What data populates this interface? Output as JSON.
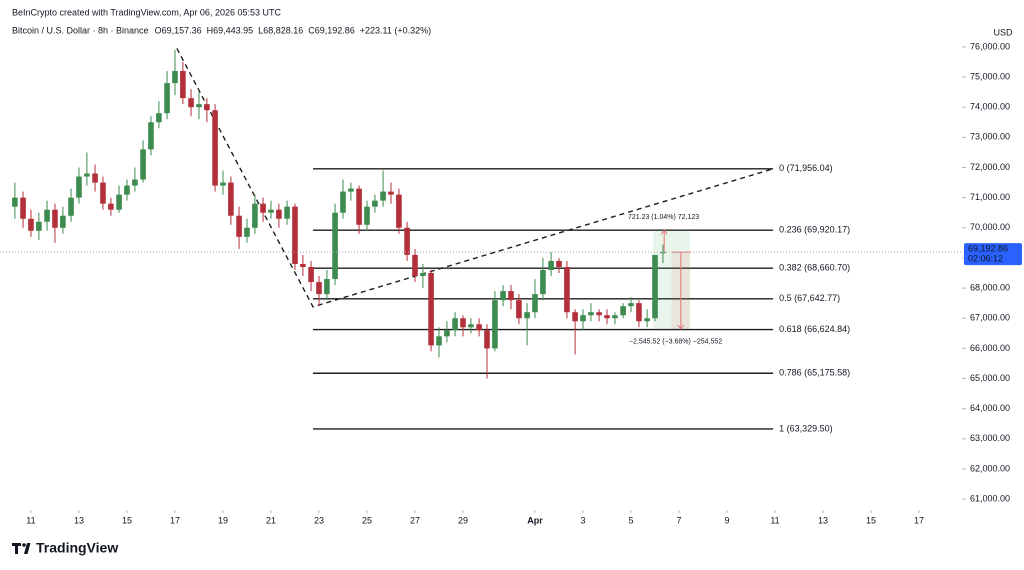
{
  "chart_data": {
    "type": "candlestick",
    "header": "BeInCrypto created with TradingView.com, Apr 06, 2026 05:53 UTC",
    "legend": {
      "symbol": "Bitcoin / U.S. Dollar · 8h · Binance",
      "fields": [
        {
          "key": "O",
          "text": "69,157.36"
        },
        {
          "key": "H",
          "text": "69,443.95"
        },
        {
          "key": "L",
          "text": "68,828.16"
        },
        {
          "key": "C",
          "text": "69,192.86"
        }
      ],
      "change": "+223.11 (+0.32%)"
    },
    "currency": "USD",
    "up_color": "#3d8b4f",
    "down_color": "#b3303a",
    "grid": false,
    "xlim": [
      -1.29,
      38.79
    ],
    "ylim": [
      60640,
      76560
    ],
    "xticks": [
      {
        "value": 0,
        "label": "11"
      },
      {
        "value": 2,
        "label": "13"
      },
      {
        "value": 4,
        "label": "15"
      },
      {
        "value": 6,
        "label": "17"
      },
      {
        "value": 8,
        "label": "19"
      },
      {
        "value": 10,
        "label": "21"
      },
      {
        "value": 12,
        "label": "23"
      },
      {
        "value": 14,
        "label": "25"
      },
      {
        "value": 16,
        "label": "27"
      },
      {
        "value": 18,
        "label": "29"
      },
      {
        "value": 21,
        "label": "Apr"
      },
      {
        "value": 23,
        "label": "3"
      },
      {
        "value": 25,
        "label": "5"
      },
      {
        "value": 27,
        "label": "7"
      },
      {
        "value": 29,
        "label": "9"
      },
      {
        "value": 31,
        "label": "11"
      },
      {
        "value": 33,
        "label": "13"
      },
      {
        "value": 35,
        "label": "15"
      },
      {
        "value": 37,
        "label": "17"
      }
    ],
    "yticks": [
      {
        "value": 76000,
        "label": "76,000.00"
      },
      {
        "value": 75000,
        "label": "75,000.00"
      },
      {
        "value": 74000,
        "label": "74,000.00"
      },
      {
        "value": 73000,
        "label": "73,000.00"
      },
      {
        "value": 72000,
        "label": "72,000.00"
      },
      {
        "value": 71000,
        "label": "71,000.00"
      },
      {
        "value": 70000,
        "label": "70,000.00"
      },
      {
        "value": 69000,
        "label": "69,000.00"
      },
      {
        "value": 68000,
        "label": "68,000.00"
      },
      {
        "value": 67000,
        "label": "67,000.00"
      },
      {
        "value": 66000,
        "label": "66,000.00"
      },
      {
        "value": 65000,
        "label": "65,000.00"
      },
      {
        "value": 64000,
        "label": "64,000.00"
      },
      {
        "value": 63000,
        "label": "63,000.00"
      },
      {
        "value": 62000,
        "label": "62,000.00"
      },
      {
        "value": 61000,
        "label": "61,000.00"
      }
    ],
    "candles": [
      {
        "x": -0.67,
        "o": 70700,
        "h": 71500,
        "l": 70300,
        "c": 71000
      },
      {
        "x": -0.33,
        "o": 71000,
        "h": 71200,
        "l": 70000,
        "c": 70300
      },
      {
        "x": 0,
        "o": 70300,
        "h": 70600,
        "l": 69700,
        "c": 69900
      },
      {
        "x": 0.33,
        "o": 69900,
        "h": 70500,
        "l": 69600,
        "c": 70200
      },
      {
        "x": 0.67,
        "o": 70200,
        "h": 70900,
        "l": 69900,
        "c": 70600
      },
      {
        "x": 1,
        "o": 70600,
        "h": 70800,
        "l": 69500,
        "c": 70000
      },
      {
        "x": 1.33,
        "o": 70000,
        "h": 70700,
        "l": 69800,
        "c": 70400
      },
      {
        "x": 1.67,
        "o": 70400,
        "h": 71300,
        "l": 70200,
        "c": 71000
      },
      {
        "x": 2,
        "o": 71000,
        "h": 72000,
        "l": 70800,
        "c": 71700
      },
      {
        "x": 2.33,
        "o": 71700,
        "h": 72500,
        "l": 71400,
        "c": 71800
      },
      {
        "x": 2.67,
        "o": 71800,
        "h": 72100,
        "l": 71200,
        "c": 71500
      },
      {
        "x": 3,
        "o": 71500,
        "h": 71700,
        "l": 70600,
        "c": 70800
      },
      {
        "x": 3.33,
        "o": 70800,
        "h": 71000,
        "l": 70400,
        "c": 70600
      },
      {
        "x": 3.67,
        "o": 70600,
        "h": 71400,
        "l": 70500,
        "c": 71100
      },
      {
        "x": 4,
        "o": 71100,
        "h": 71600,
        "l": 70900,
        "c": 71400
      },
      {
        "x": 4.33,
        "o": 71400,
        "h": 72000,
        "l": 71200,
        "c": 71600
      },
      {
        "x": 4.67,
        "o": 71600,
        "h": 72900,
        "l": 71500,
        "c": 72600
      },
      {
        "x": 5,
        "o": 72600,
        "h": 73700,
        "l": 72400,
        "c": 73500
      },
      {
        "x": 5.33,
        "o": 73500,
        "h": 74200,
        "l": 73300,
        "c": 73800
      },
      {
        "x": 5.67,
        "o": 73800,
        "h": 75200,
        "l": 73600,
        "c": 74800
      },
      {
        "x": 6,
        "o": 74800,
        "h": 75900,
        "l": 74400,
        "c": 75200
      },
      {
        "x": 6.33,
        "o": 75200,
        "h": 75500,
        "l": 74100,
        "c": 74300
      },
      {
        "x": 6.67,
        "o": 74300,
        "h": 74600,
        "l": 73700,
        "c": 74000
      },
      {
        "x": 7,
        "o": 74000,
        "h": 74500,
        "l": 73600,
        "c": 74100
      },
      {
        "x": 7.33,
        "o": 74100,
        "h": 74300,
        "l": 73500,
        "c": 73900
      },
      {
        "x": 7.67,
        "o": 73900,
        "h": 74100,
        "l": 71200,
        "c": 71400
      },
      {
        "x": 8,
        "o": 71400,
        "h": 71900,
        "l": 71100,
        "c": 71500
      },
      {
        "x": 8.33,
        "o": 71500,
        "h": 71700,
        "l": 70100,
        "c": 70400
      },
      {
        "x": 8.67,
        "o": 70400,
        "h": 70700,
        "l": 69300,
        "c": 69700
      },
      {
        "x": 9,
        "o": 69700,
        "h": 70300,
        "l": 69500,
        "c": 70000
      },
      {
        "x": 9.33,
        "o": 70000,
        "h": 71100,
        "l": 69800,
        "c": 70800
      },
      {
        "x": 9.67,
        "o": 70800,
        "h": 71000,
        "l": 70200,
        "c": 70500
      },
      {
        "x": 10,
        "o": 70500,
        "h": 70900,
        "l": 70300,
        "c": 70600
      },
      {
        "x": 10.33,
        "o": 70600,
        "h": 70800,
        "l": 70000,
        "c": 70300
      },
      {
        "x": 10.67,
        "o": 70300,
        "h": 70900,
        "l": 70100,
        "c": 70700
      },
      {
        "x": 11,
        "o": 70700,
        "h": 70800,
        "l": 68600,
        "c": 68800
      },
      {
        "x": 11.33,
        "o": 68800,
        "h": 69100,
        "l": 68400,
        "c": 68700
      },
      {
        "x": 11.67,
        "o": 68700,
        "h": 68900,
        "l": 67900,
        "c": 68200
      },
      {
        "x": 12,
        "o": 68200,
        "h": 68400,
        "l": 67400,
        "c": 67800
      },
      {
        "x": 12.33,
        "o": 67800,
        "h": 68600,
        "l": 67600,
        "c": 68300
      },
      {
        "x": 12.67,
        "o": 68300,
        "h": 70800,
        "l": 68100,
        "c": 70500
      },
      {
        "x": 13,
        "o": 70500,
        "h": 71600,
        "l": 70300,
        "c": 71200
      },
      {
        "x": 13.33,
        "o": 71200,
        "h": 71500,
        "l": 70900,
        "c": 71300
      },
      {
        "x": 13.67,
        "o": 71300,
        "h": 71400,
        "l": 69800,
        "c": 70100
      },
      {
        "x": 14,
        "o": 70100,
        "h": 70900,
        "l": 69900,
        "c": 70700
      },
      {
        "x": 14.33,
        "o": 70700,
        "h": 71100,
        "l": 70500,
        "c": 70900
      },
      {
        "x": 14.67,
        "o": 70900,
        "h": 71900,
        "l": 70700,
        "c": 71200
      },
      {
        "x": 15,
        "o": 71200,
        "h": 71500,
        "l": 70800,
        "c": 71100
      },
      {
        "x": 15.33,
        "o": 71100,
        "h": 71300,
        "l": 69800,
        "c": 70000
      },
      {
        "x": 15.67,
        "o": 70000,
        "h": 70200,
        "l": 68900,
        "c": 69100
      },
      {
        "x": 16,
        "o": 69100,
        "h": 69300,
        "l": 68200,
        "c": 68400
      },
      {
        "x": 16.33,
        "o": 68400,
        "h": 68800,
        "l": 68000,
        "c": 68500
      },
      {
        "x": 16.67,
        "o": 68500,
        "h": 68600,
        "l": 65900,
        "c": 66100
      },
      {
        "x": 17,
        "o": 66100,
        "h": 66700,
        "l": 65700,
        "c": 66400
      },
      {
        "x": 17.33,
        "o": 66400,
        "h": 66900,
        "l": 66200,
        "c": 66600
      },
      {
        "x": 17.67,
        "o": 66600,
        "h": 67200,
        "l": 66400,
        "c": 67000
      },
      {
        "x": 18,
        "o": 67000,
        "h": 67100,
        "l": 66400,
        "c": 66700
      },
      {
        "x": 18.33,
        "o": 66700,
        "h": 67000,
        "l": 66500,
        "c": 66800
      },
      {
        "x": 18.67,
        "o": 66800,
        "h": 67000,
        "l": 66400,
        "c": 66600
      },
      {
        "x": 19,
        "o": 66600,
        "h": 66800,
        "l": 65000,
        "c": 66000
      },
      {
        "x": 19.33,
        "o": 66000,
        "h": 67900,
        "l": 65900,
        "c": 67600
      },
      {
        "x": 19.67,
        "o": 67600,
        "h": 68100,
        "l": 67400,
        "c": 67900
      },
      {
        "x": 20,
        "o": 67900,
        "h": 68100,
        "l": 67300,
        "c": 67600
      },
      {
        "x": 20.33,
        "o": 67600,
        "h": 67800,
        "l": 66800,
        "c": 67000
      },
      {
        "x": 20.67,
        "o": 67000,
        "h": 67500,
        "l": 66100,
        "c": 67200
      },
      {
        "x": 21,
        "o": 67200,
        "h": 68300,
        "l": 67000,
        "c": 67800
      },
      {
        "x": 21.33,
        "o": 67800,
        "h": 69000,
        "l": 67600,
        "c": 68600
      },
      {
        "x": 21.67,
        "o": 68600,
        "h": 69200,
        "l": 68400,
        "c": 68900
      },
      {
        "x": 22,
        "o": 68900,
        "h": 69000,
        "l": 68500,
        "c": 68700
      },
      {
        "x": 22.33,
        "o": 68700,
        "h": 68900,
        "l": 67000,
        "c": 67200
      },
      {
        "x": 22.67,
        "o": 67200,
        "h": 67300,
        "l": 65800,
        "c": 66900
      },
      {
        "x": 23,
        "o": 66900,
        "h": 67300,
        "l": 66600,
        "c": 67100
      },
      {
        "x": 23.33,
        "o": 67100,
        "h": 67500,
        "l": 66900,
        "c": 67200
      },
      {
        "x": 23.67,
        "o": 67200,
        "h": 67300,
        "l": 66900,
        "c": 67100
      },
      {
        "x": 24,
        "o": 67100,
        "h": 67300,
        "l": 66800,
        "c": 67000
      },
      {
        "x": 24.33,
        "o": 67000,
        "h": 67200,
        "l": 66800,
        "c": 67100
      },
      {
        "x": 24.67,
        "o": 67100,
        "h": 67500,
        "l": 67000,
        "c": 67400
      },
      {
        "x": 25,
        "o": 67400,
        "h": 67700,
        "l": 67200,
        "c": 67500
      },
      {
        "x": 25.33,
        "o": 67500,
        "h": 67600,
        "l": 66700,
        "c": 66900
      },
      {
        "x": 25.67,
        "o": 66900,
        "h": 67300,
        "l": 66700,
        "c": 67000
      },
      {
        "x": 26,
        "o": 67000,
        "h": 69100,
        "l": 66900,
        "c": 69100
      },
      {
        "x": 26.33,
        "o": 69157.36,
        "h": 69443.95,
        "l": 68828.16,
        "c": 69192.86
      }
    ],
    "price_label": "69,192.86",
    "countdown": "02:06:12",
    "trendline": {
      "x": [
        6.08,
        11.75,
        30.92
      ],
      "y": [
        75950,
        67380,
        71956.04
      ]
    },
    "fib": {
      "x_range": [
        11.75,
        30.92
      ],
      "levels": [
        {
          "label": "0 (71,956.04)",
          "value": 71956.04
        },
        {
          "label": "0.236 (69,920.17)",
          "value": 69920.17
        },
        {
          "label": "0.382 (68,660.70)",
          "value": 68660.7
        },
        {
          "label": "0.5 (67,642.77)",
          "value": 67642.77
        },
        {
          "label": "0.618 (66,624.84)",
          "value": 66624.84
        },
        {
          "label": "0.786 (65,175.58)",
          "value": 65175.58
        },
        {
          "label": "1 (63,329.50)",
          "value": 63329.5
        }
      ]
    },
    "measure": {
      "x_range": [
        25.92,
        27.46
      ],
      "base": 69192.86,
      "up": {
        "to": 69914.09,
        "label": "721.23 (1.04%) 72,123"
      },
      "down": {
        "to": 66647.34,
        "label": "−2,545.52 (−3.68%) −254,552"
      }
    },
    "brand": "TradingView"
  }
}
